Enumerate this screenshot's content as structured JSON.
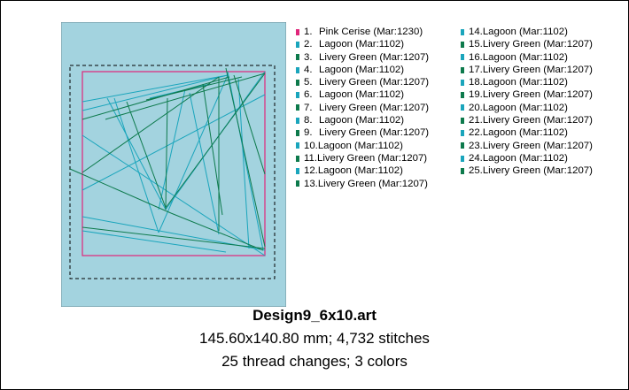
{
  "design": {
    "filename": "Design9_6x10.art",
    "dimensions_stitches": "145.60x140.80 mm; 4,732 stitches",
    "changes_colors": "25 thread changes; 3 colors"
  },
  "colors": {
    "hoop_fill": "#a3d3df",
    "pink_cerise": "#e0267a",
    "lagoon": "#1aa5bc",
    "livery_green": "#0d7a4c"
  },
  "threads": [
    {
      "num": "1.",
      "name": "Pink Cerise (Mar:1230)",
      "color": "#e0267a"
    },
    {
      "num": "2.",
      "name": "Lagoon (Mar:1102)",
      "color": "#1aa5bc"
    },
    {
      "num": "3.",
      "name": "Livery Green (Mar:1207)",
      "color": "#0d7a4c"
    },
    {
      "num": "4.",
      "name": "Lagoon (Mar:1102)",
      "color": "#1aa5bc"
    },
    {
      "num": "5.",
      "name": "Livery Green (Mar:1207)",
      "color": "#0d7a4c"
    },
    {
      "num": "6.",
      "name": "Lagoon (Mar:1102)",
      "color": "#1aa5bc"
    },
    {
      "num": "7.",
      "name": "Livery Green (Mar:1207)",
      "color": "#0d7a4c"
    },
    {
      "num": "8.",
      "name": "Lagoon (Mar:1102)",
      "color": "#1aa5bc"
    },
    {
      "num": "9.",
      "name": "Livery Green (Mar:1207)",
      "color": "#0d7a4c"
    },
    {
      "num": "10.",
      "name": "Lagoon (Mar:1102)",
      "color": "#1aa5bc"
    },
    {
      "num": "11.",
      "name": "Livery Green (Mar:1207)",
      "color": "#0d7a4c"
    },
    {
      "num": "12.",
      "name": "Lagoon (Mar:1102)",
      "color": "#1aa5bc"
    },
    {
      "num": "13.",
      "name": "Livery Green (Mar:1207)",
      "color": "#0d7a4c"
    },
    {
      "num": "14.",
      "name": "Lagoon (Mar:1102)",
      "color": "#1aa5bc"
    },
    {
      "num": "15.",
      "name": "Livery Green (Mar:1207)",
      "color": "#0d7a4c"
    },
    {
      "num": "16.",
      "name": "Lagoon (Mar:1102)",
      "color": "#1aa5bc"
    },
    {
      "num": "17.",
      "name": "Livery Green (Mar:1207)",
      "color": "#0d7a4c"
    },
    {
      "num": "18.",
      "name": "Lagoon (Mar:1102)",
      "color": "#1aa5bc"
    },
    {
      "num": "19.",
      "name": "Livery Green (Mar:1207)",
      "color": "#0d7a4c"
    },
    {
      "num": "20.",
      "name": "Lagoon (Mar:1102)",
      "color": "#1aa5bc"
    },
    {
      "num": "21.",
      "name": "Livery Green (Mar:1207)",
      "color": "#0d7a4c"
    },
    {
      "num": "22.",
      "name": "Lagoon (Mar:1102)",
      "color": "#1aa5bc"
    },
    {
      "num": "23.",
      "name": "Livery Green (Mar:1207)",
      "color": "#0d7a4c"
    },
    {
      "num": "24.",
      "name": "Lagoon (Mar:1102)",
      "color": "#1aa5bc"
    },
    {
      "num": "25.",
      "name": "Livery Green (Mar:1207)",
      "color": "#0d7a4c"
    }
  ]
}
